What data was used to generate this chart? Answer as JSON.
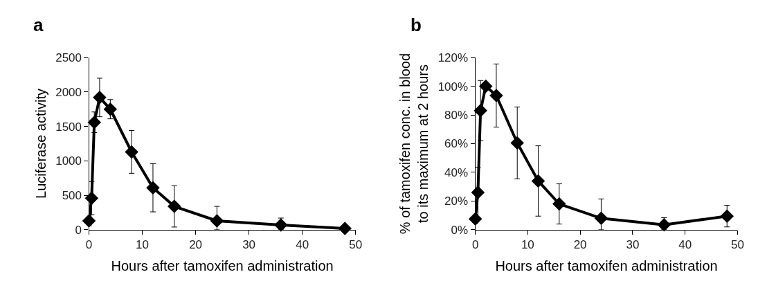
{
  "chart_data": [
    {
      "type": "line",
      "title": "a",
      "xlabel": "Hours after tamoxifen administration",
      "ylabel": "Luciferase activity",
      "x": [
        0,
        0.5,
        1,
        2,
        4,
        8,
        12,
        16,
        24,
        36,
        48
      ],
      "series": [
        {
          "color": "#000000",
          "values": [
            130,
            460,
            1560,
            1920,
            1750,
            1130,
            610,
            340,
            130,
            70,
            20
          ],
          "errors": [
            70,
            240,
            150,
            280,
            140,
            310,
            350,
            300,
            [
              0,
              340
            ],
            [
              0,
              170
            ],
            null
          ]
        }
      ],
      "xlim": [
        0,
        50
      ],
      "xticks": [
        0,
        10,
        20,
        30,
        40,
        50
      ],
      "ylim": [
        0,
        2500
      ],
      "yticks": [
        0,
        500,
        1000,
        1500,
        2000,
        2500
      ],
      "marker": "diamond",
      "line_style": "solid"
    },
    {
      "type": "line",
      "title": "b",
      "xlabel": "Hours after tamoxifen administration",
      "ylabel": "% of tamoxifen conc. in blood\nto its maximum at 2 hours",
      "x": [
        0,
        0.5,
        1,
        2,
        4,
        8,
        12,
        16,
        24,
        36,
        48
      ],
      "series": [
        {
          "color": "#000000",
          "values": [
            7.5,
            26,
            83,
            100,
            93.5,
            60.5,
            34,
            18,
            8,
            3.5,
            9.5
          ],
          "errors": [
            3,
            17.5,
            21,
            null,
            22,
            25,
            24.5,
            14,
            [
              0,
              21.5
            ],
            [
              0,
              8.4
            ],
            7.5
          ]
        }
      ],
      "xlim": [
        0,
        50
      ],
      "xticks": [
        0,
        10,
        20,
        30,
        40,
        50
      ],
      "ylim": [
        0,
        120
      ],
      "yticks": [
        {
          "value": 0,
          "label": "0%"
        },
        {
          "value": 20,
          "label": "20%"
        },
        {
          "value": 40,
          "label": "40%"
        },
        {
          "value": 60,
          "label": "60%"
        },
        {
          "value": 80,
          "label": "80%"
        },
        {
          "value": 100,
          "label": "100%"
        },
        {
          "value": 120,
          "label": "120%"
        }
      ],
      "marker": "diamond",
      "line_style": "solid"
    }
  ]
}
